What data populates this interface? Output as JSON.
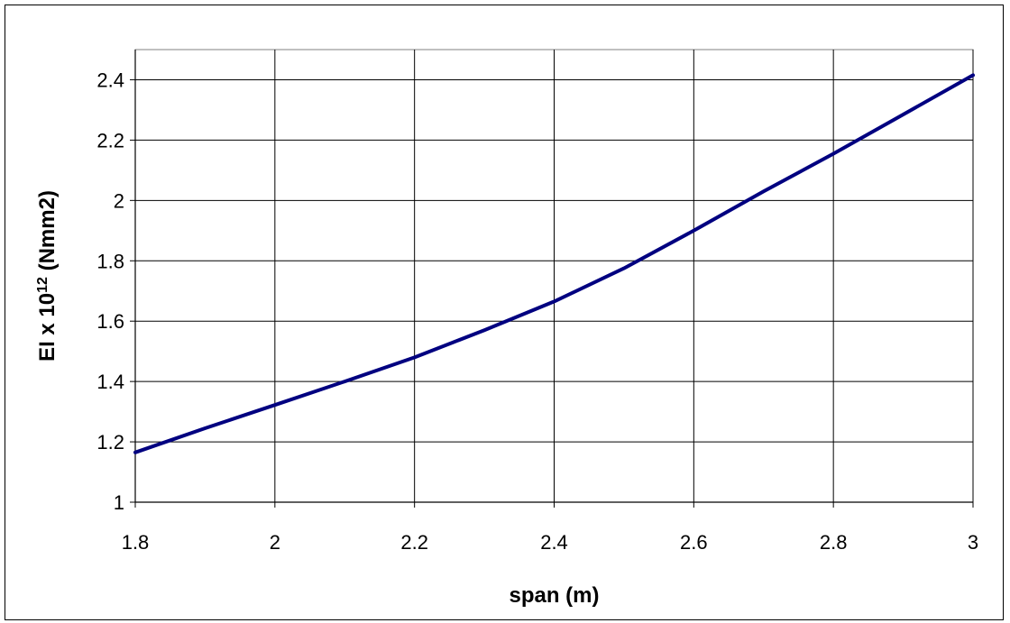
{
  "chart_data": {
    "type": "line",
    "title": "",
    "xlabel": "span (m)",
    "ylabel_parts": {
      "prefix": "EI x 10",
      "superscript": "12",
      "suffix": " (Nmm2)"
    },
    "xlim": [
      1.8,
      3
    ],
    "ylim": [
      1,
      2.4
    ],
    "x_ticks": [
      1.8,
      2,
      2.2,
      2.4,
      2.6,
      2.8,
      3
    ],
    "x_tick_labels": [
      "1.8",
      "2",
      "2.2",
      "2.4",
      "2.6",
      "2.8",
      "3"
    ],
    "y_ticks": [
      1,
      1.2,
      1.4,
      1.6,
      1.8,
      2,
      2.2,
      2.4
    ],
    "y_tick_labels": [
      "1",
      "1.2",
      "1.4",
      "1.6",
      "1.8",
      "2",
      "2.2",
      "2.4"
    ],
    "grid": true,
    "legend": "none",
    "series": [
      {
        "color": "#000080",
        "x": [
          1.8,
          1.9,
          2.0,
          2.1,
          2.2,
          2.3,
          2.4,
          2.5,
          2.6,
          2.7,
          2.8,
          2.9,
          3.0
        ],
        "y": [
          1.165,
          1.245,
          1.322,
          1.4,
          1.48,
          1.57,
          1.665,
          1.775,
          1.9,
          2.03,
          2.155,
          2.285,
          2.415
        ]
      }
    ]
  }
}
